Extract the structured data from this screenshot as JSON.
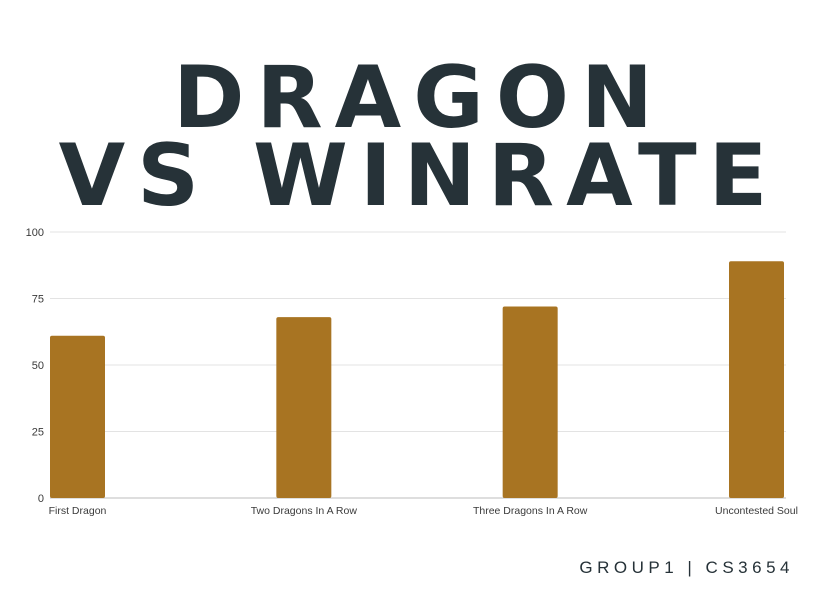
{
  "title": {
    "line1": "DRAGON",
    "line2": "VS WINRATE"
  },
  "footer": {
    "text": "GROUP1 | CS3654"
  },
  "colors": {
    "bar": "#A87422",
    "grid": "#e3e3e3",
    "title": "#263238"
  },
  "chart_data": {
    "type": "bar",
    "categories": [
      "First Dragon",
      "Two Dragons In A Row",
      "Three Dragons In A Row",
      "Uncontested Soul"
    ],
    "values": [
      61,
      68,
      72,
      89
    ],
    "title": "",
    "xlabel": "",
    "ylabel": "",
    "ylim": [
      0,
      100
    ],
    "yticks": [
      0,
      25,
      50,
      75,
      100
    ],
    "grid": true,
    "legend": "none"
  }
}
